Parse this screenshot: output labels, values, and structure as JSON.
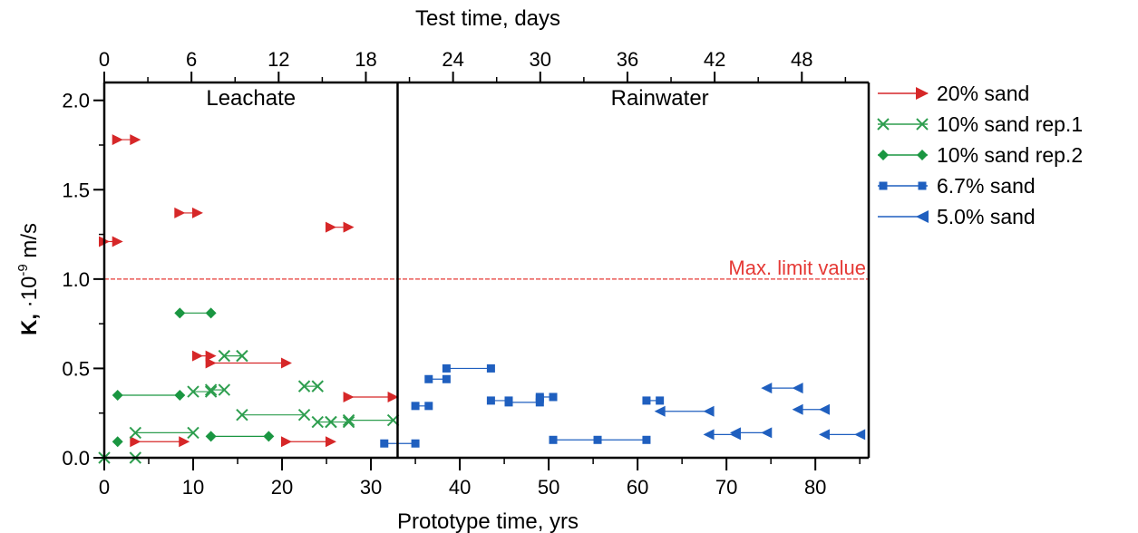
{
  "chart_data": {
    "type": "scatter",
    "title": "",
    "xlabel": "Prototype time, yrs",
    "x2label": "Test time, days",
    "ylabel_bold": "K,",
    "ylabel_rest": " ·10",
    "ylabel_exp": "-9",
    "ylabel_unit": " m/s",
    "xlim": [
      0,
      86
    ],
    "ylim": [
      0,
      2.1
    ],
    "x2lim": [
      0,
      52.6
    ],
    "xticks": [
      "0",
      "10",
      "20",
      "30",
      "40",
      "50",
      "60",
      "70",
      "80"
    ],
    "xtick_values": [
      0,
      10,
      20,
      30,
      40,
      50,
      60,
      70,
      80
    ],
    "yticks": [
      "0.0",
      "0.5",
      "1.0",
      "1.5",
      "2.0"
    ],
    "ytick_values": [
      0,
      0.5,
      1.0,
      1.5,
      2.0
    ],
    "x2ticks": [
      "0",
      "6",
      "12",
      "18",
      "24",
      "30",
      "36",
      "42",
      "48"
    ],
    "x2tick_values": [
      0,
      6,
      12,
      18,
      24,
      30,
      36,
      42,
      48
    ],
    "regions": [
      {
        "label": "Leachate",
        "x_center": 16.5
      },
      {
        "label": "Rainwater",
        "x_center": 62.5
      }
    ],
    "divider_x": 33,
    "limit": {
      "y": 1.0,
      "label": "Max. limit value",
      "color": "#e53935"
    },
    "legend_position": "right",
    "series": [
      {
        "name": "20% sand",
        "marker": "triangle-right",
        "color": "#d62728",
        "segments": [
          [
            0,
            1.21,
            1.5,
            1.21
          ],
          [
            1.5,
            1.78,
            3.5,
            1.78
          ],
          [
            8.5,
            1.37,
            10.5,
            1.37
          ],
          [
            25.5,
            1.29,
            27.5,
            1.29
          ],
          [
            10.5,
            0.57,
            12,
            0.57
          ],
          [
            12,
            0.53,
            20.5,
            0.53
          ],
          [
            27.5,
            0.34,
            32.5,
            0.34
          ],
          [
            3.5,
            0.09,
            9,
            0.09
          ],
          [
            20.5,
            0.09,
            25.5,
            0.09
          ]
        ]
      },
      {
        "name": "10% sand rep.1",
        "marker": "x",
        "color": "#2e9e4f",
        "segments": [
          [
            0,
            0,
            3.5,
            0
          ],
          [
            3.5,
            0.14,
            10,
            0.14
          ],
          [
            10,
            0.37,
            12,
            0.37
          ],
          [
            12,
            0.38,
            13.5,
            0.38
          ],
          [
            13.5,
            0.57,
            15.5,
            0.57
          ],
          [
            15.5,
            0.24,
            22.5,
            0.24
          ],
          [
            22.5,
            0.4,
            24,
            0.4
          ],
          [
            24,
            0.2,
            25.5,
            0.2
          ],
          [
            25.5,
            0.2,
            27.5,
            0.2
          ],
          [
            27.5,
            0.21,
            32.5,
            0.21
          ]
        ]
      },
      {
        "name": "10% sand rep.2",
        "marker": "diamond",
        "color": "#1a9641",
        "segments": [
          [
            1.5,
            0.09,
            1.5,
            0.09
          ],
          [
            1.5,
            0.35,
            8.5,
            0.35
          ],
          [
            8.5,
            0.81,
            12,
            0.81
          ],
          [
            12,
            0.12,
            18.5,
            0.12
          ]
        ]
      },
      {
        "name": "6.7% sand",
        "marker": "square",
        "color": "#1f5fbf",
        "segments": [
          [
            31.5,
            0.08,
            35,
            0.08
          ],
          [
            35,
            0.29,
            36.5,
            0.29
          ],
          [
            36.5,
            0.44,
            38.5,
            0.44
          ],
          [
            38.5,
            0.5,
            43.5,
            0.5
          ],
          [
            43.5,
            0.32,
            45.5,
            0.32
          ],
          [
            45.5,
            0.31,
            49,
            0.31
          ],
          [
            49,
            0.34,
            50.5,
            0.34
          ],
          [
            50.5,
            0.1,
            61,
            0.1
          ],
          [
            61,
            0.32,
            62.5,
            0.32
          ]
        ],
        "extra_points": [
          [
            55.5,
            0.1
          ],
          [
            49,
            0.33
          ]
        ]
      },
      {
        "name": "5.0% sand",
        "marker": "triangle-left",
        "color": "#1f5fbf",
        "segments": [
          [
            62.5,
            0.26,
            68,
            0.26
          ],
          [
            68,
            0.13,
            71,
            0.13
          ],
          [
            71,
            0.14,
            74.5,
            0.14
          ],
          [
            74.5,
            0.39,
            78,
            0.39
          ],
          [
            78,
            0.27,
            81,
            0.27
          ],
          [
            81,
            0.13,
            85,
            0.13
          ]
        ]
      }
    ]
  }
}
